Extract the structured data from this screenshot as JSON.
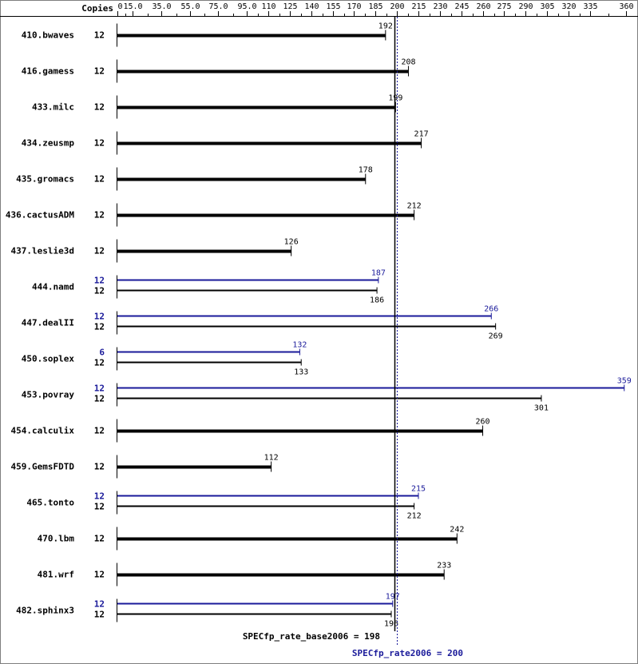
{
  "header": {
    "copies_label": "Copies"
  },
  "colors": {
    "base": "#000000",
    "peak": "#1a1a9a",
    "background": "#ffffff"
  },
  "chart_data": {
    "type": "bar",
    "orientation": "horizontal",
    "xlim": [
      0,
      360
    ],
    "ticks": [
      0,
      15.0,
      35.0,
      55.0,
      75.0,
      95.0,
      110,
      125,
      140,
      155,
      170,
      185,
      200,
      215,
      230,
      245,
      260,
      275,
      290,
      305,
      320,
      335,
      360
    ],
    "tick_labels": [
      "0",
      "15.0",
      "35.0",
      "55.0",
      "75.0",
      "95.0",
      "110",
      "125",
      "140",
      "155",
      "170",
      "185",
      "200",
      "215",
      "230",
      "245",
      "260",
      "275",
      "290",
      "305",
      "320",
      "335",
      "360"
    ],
    "series": [
      {
        "name": "SPECfp_rate_base2006",
        "color": "#000000"
      },
      {
        "name": "SPECfp_rate2006",
        "color": "#1a1a9a"
      }
    ],
    "benchmarks": [
      {
        "name": "410.bwaves",
        "base": {
          "copies": "12",
          "value": 192
        }
      },
      {
        "name": "416.gamess",
        "base": {
          "copies": "12",
          "value": 208
        }
      },
      {
        "name": "433.milc",
        "base": {
          "copies": "12",
          "value": 199
        }
      },
      {
        "name": "434.zeusmp",
        "base": {
          "copies": "12",
          "value": 217
        }
      },
      {
        "name": "435.gromacs",
        "base": {
          "copies": "12",
          "value": 178
        }
      },
      {
        "name": "436.cactusADM",
        "base": {
          "copies": "12",
          "value": 212
        }
      },
      {
        "name": "437.leslie3d",
        "base": {
          "copies": "12",
          "value": 126
        }
      },
      {
        "name": "444.namd",
        "peak": {
          "copies": "12",
          "value": 187
        },
        "base": {
          "copies": "12",
          "value": 186
        }
      },
      {
        "name": "447.dealII",
        "peak": {
          "copies": "12",
          "value": 266
        },
        "base": {
          "copies": "12",
          "value": 269
        }
      },
      {
        "name": "450.soplex",
        "peak": {
          "copies": "6",
          "value": 132
        },
        "base": {
          "copies": "12",
          "value": 133
        }
      },
      {
        "name": "453.povray",
        "peak": {
          "copies": "12",
          "value": 359
        },
        "base": {
          "copies": "12",
          "value": 301
        }
      },
      {
        "name": "454.calculix",
        "base": {
          "copies": "12",
          "value": 260
        }
      },
      {
        "name": "459.GemsFDTD",
        "base": {
          "copies": "12",
          "value": 112
        }
      },
      {
        "name": "465.tonto",
        "peak": {
          "copies": "12",
          "value": 215
        },
        "base": {
          "copies": "12",
          "value": 212
        }
      },
      {
        "name": "470.lbm",
        "base": {
          "copies": "12",
          "value": 242
        }
      },
      {
        "name": "481.wrf",
        "base": {
          "copies": "12",
          "value": 233
        }
      },
      {
        "name": "482.sphinx3",
        "peak": {
          "copies": "12",
          "value": 197
        },
        "base": {
          "copies": "12",
          "value": 196
        }
      }
    ],
    "reference_lines": [
      {
        "label": "SPECfp_rate_base2006 = 198",
        "value": 198,
        "style": "solid",
        "color": "#000000"
      },
      {
        "label": "SPECfp_rate2006 = 200",
        "value": 200,
        "style": "dotted",
        "color": "#1a1a9a"
      }
    ]
  }
}
